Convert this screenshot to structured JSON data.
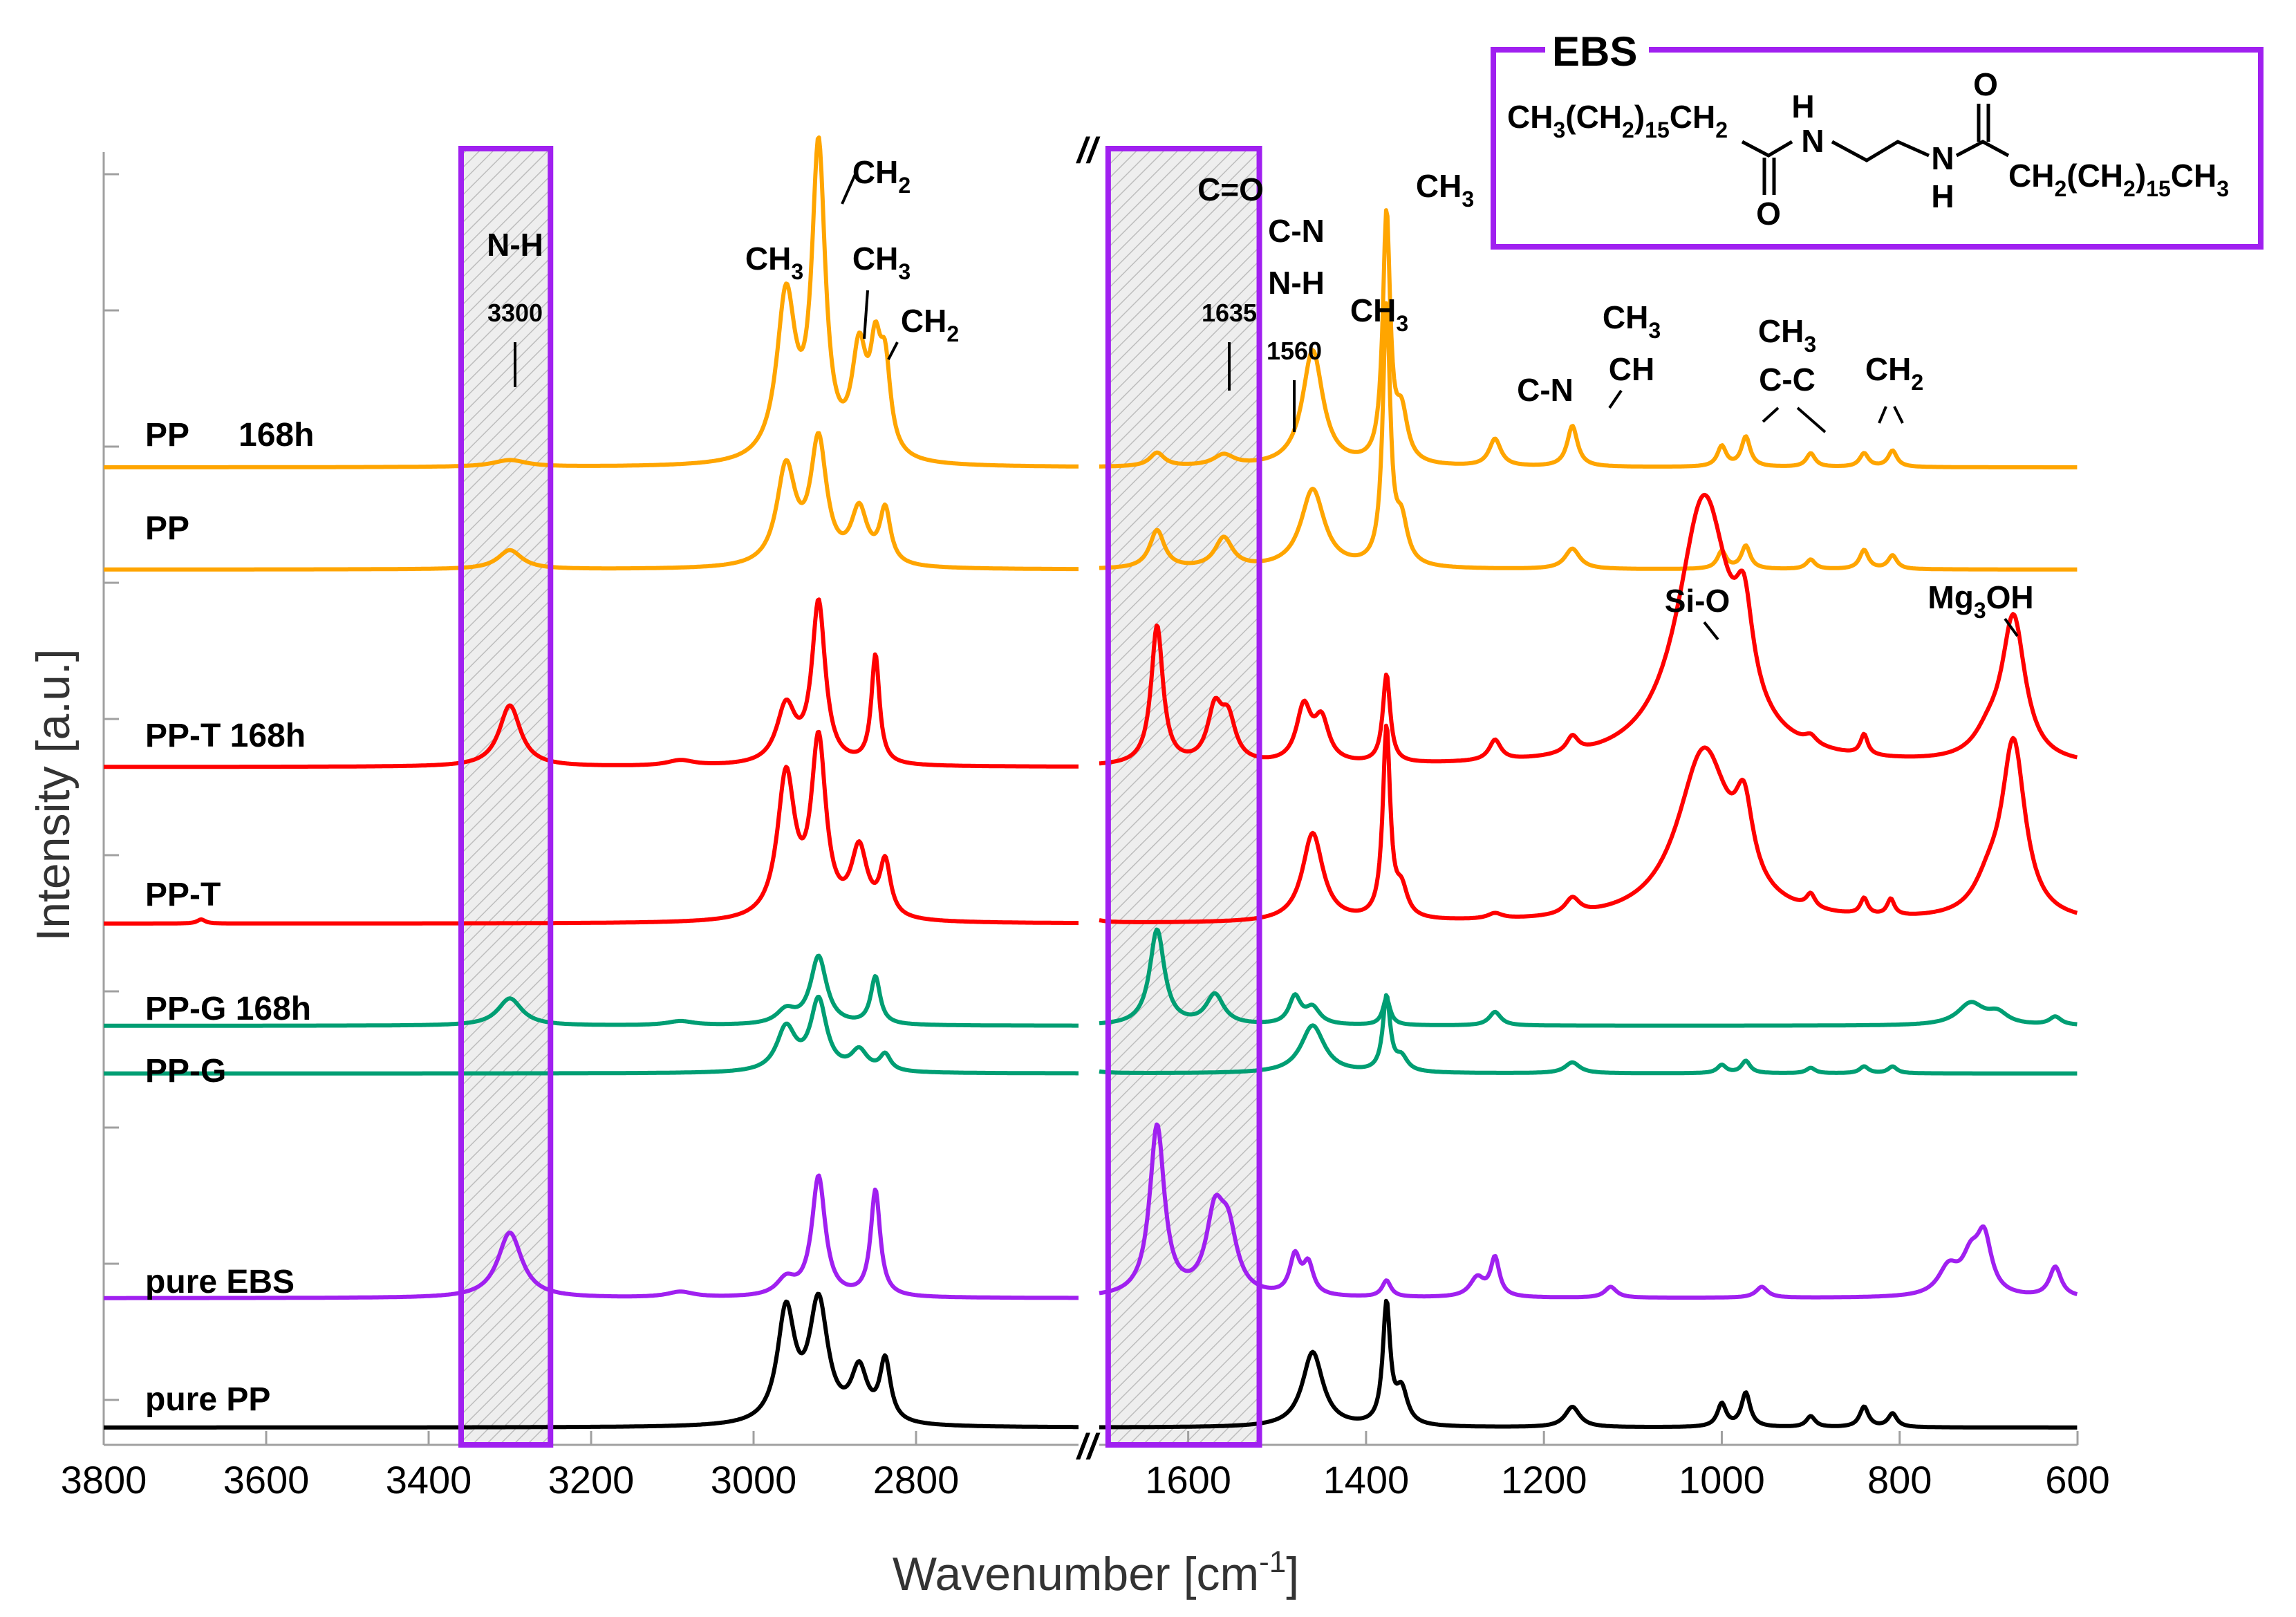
{
  "chart_data": {
    "type": "line",
    "title": "",
    "xlabel": "Wavenumber [cm-1]",
    "xlabel_base": "Wavenumber [cm",
    "xlabel_sup": "-1",
    "xlabel_end": "]",
    "ylabel": "Intensity [a.u.]",
    "x_axis_break": "//",
    "x_segments": [
      [
        3800,
        2600
      ],
      [
        1700,
        600
      ]
    ],
    "x_ticks": [
      3800,
      3600,
      3400,
      3200,
      3000,
      2800,
      1600,
      1400,
      1200,
      1000,
      800,
      600
    ],
    "x_tick_labels": [
      "3800",
      "3600",
      "3400",
      "3200",
      "3000",
      "2800",
      "1600",
      "1400",
      "1200",
      "1000",
      "800",
      "600"
    ],
    "y_ticks_unlabeled": [
      0,
      1,
      2,
      3,
      4,
      5,
      6,
      7,
      8,
      9
    ],
    "ylim": [
      0,
      9.3
    ],
    "colors": {
      "pp": "#FFA500",
      "ppt": "#FF0000",
      "ppg": "#009E73",
      "ebs": "#A020F0",
      "purepp": "#000000",
      "box": "#A020F0"
    },
    "highlight_regions": [
      {
        "x": [
          3360,
          3250
        ],
        "label": "N-H"
      },
      {
        "x": [
          1690,
          1520
        ],
        "label": "C=O"
      }
    ],
    "series": [
      {
        "name": "PP 168h",
        "label_a": "PP",
        "label_b": "168h",
        "color": "#FFA500",
        "baseline": 7.05,
        "peaks": [
          [
            3300,
            0.05,
            25
          ],
          [
            2960,
            1.2,
            14
          ],
          [
            2920,
            2.25,
            10
          ],
          [
            2870,
            0.75,
            11
          ],
          [
            2850,
            0.65,
            8
          ],
          [
            2838,
            0.6,
            8
          ],
          [
            1635,
            0.1,
            10
          ],
          [
            1560,
            0.08,
            14
          ],
          [
            1460,
            0.85,
            14
          ],
          [
            1377,
            1.82,
            5
          ],
          [
            1360,
            0.35,
            8
          ],
          [
            1255,
            0.2,
            8
          ],
          [
            1168,
            0.3,
            7
          ],
          [
            1000,
            0.15,
            6
          ],
          [
            973,
            0.22,
            6
          ],
          [
            900,
            0.1,
            6
          ],
          [
            840,
            0.1,
            6
          ],
          [
            808,
            0.12,
            6
          ]
        ]
      },
      {
        "name": "PP",
        "label_a": "PP",
        "color": "#FFA500",
        "baseline": 6.3,
        "peaks": [
          [
            3300,
            0.14,
            18
          ],
          [
            2960,
            0.72,
            14
          ],
          [
            2920,
            0.9,
            12
          ],
          [
            2870,
            0.4,
            12
          ],
          [
            2838,
            0.4,
            8
          ],
          [
            1635,
            0.28,
            10
          ],
          [
            1560,
            0.22,
            12
          ],
          [
            1460,
            0.58,
            16
          ],
          [
            1377,
            1.9,
            5
          ],
          [
            1360,
            0.3,
            8
          ],
          [
            1168,
            0.15,
            10
          ],
          [
            1000,
            0.13,
            6
          ],
          [
            973,
            0.17,
            6
          ],
          [
            900,
            0.07,
            6
          ],
          [
            840,
            0.14,
            6
          ],
          [
            808,
            0.1,
            6
          ]
        ]
      },
      {
        "name": "PP-T 168h",
        "label_a": "PP-T 168h",
        "color": "#FF0000",
        "baseline": 4.85,
        "peaks": [
          [
            3300,
            0.45,
            16
          ],
          [
            3090,
            0.04,
            20
          ],
          [
            2960,
            0.42,
            14
          ],
          [
            2920,
            1.18,
            10
          ],
          [
            2850,
            0.8,
            6
          ],
          [
            1635,
            1.02,
            8
          ],
          [
            1570,
            0.38,
            10
          ],
          [
            1555,
            0.3,
            10
          ],
          [
            1470,
            0.4,
            10
          ],
          [
            1450,
            0.3,
            10
          ],
          [
            1377,
            0.65,
            5
          ],
          [
            1255,
            0.15,
            8
          ],
          [
            1168,
            0.12,
            8
          ],
          [
            1020,
            1.95,
            36
          ],
          [
            975,
            0.65,
            12
          ],
          [
            900,
            0.06,
            8
          ],
          [
            840,
            0.15,
            5
          ],
          [
            672,
            1.05,
            16
          ],
          [
            700,
            0.15,
            20
          ]
        ]
      },
      {
        "name": "PP-T",
        "label_a": "PP-T",
        "color": "#FF0000",
        "baseline": 3.7,
        "peaks": [
          [
            3680,
            0.03,
            6
          ],
          [
            2960,
            1.05,
            13
          ],
          [
            2920,
            1.28,
            11
          ],
          [
            2870,
            0.5,
            12
          ],
          [
            2838,
            0.4,
            8
          ],
          [
            1720,
            0.07,
            12
          ],
          [
            1460,
            0.65,
            14
          ],
          [
            1377,
            1.4,
            5
          ],
          [
            1360,
            0.2,
            8
          ],
          [
            1255,
            0.04,
            10
          ],
          [
            1168,
            0.12,
            10
          ],
          [
            1020,
            1.25,
            36
          ],
          [
            975,
            0.55,
            12
          ],
          [
            900,
            0.1,
            6
          ],
          [
            840,
            0.12,
            5
          ],
          [
            810,
            0.12,
            5
          ],
          [
            672,
            1.28,
            16
          ],
          [
            700,
            0.2,
            20
          ]
        ]
      },
      {
        "name": "PP-G 168h",
        "label_a": "PP-G 168h",
        "color": "#009E73",
        "baseline": 2.95,
        "peaks": [
          [
            3300,
            0.2,
            18
          ],
          [
            3090,
            0.03,
            20
          ],
          [
            2960,
            0.1,
            14
          ],
          [
            2920,
            0.5,
            12
          ],
          [
            2850,
            0.35,
            7
          ],
          [
            1635,
            0.7,
            10
          ],
          [
            1570,
            0.22,
            12
          ],
          [
            1480,
            0.2,
            8
          ],
          [
            1460,
            0.12,
            10
          ],
          [
            1377,
            0.2,
            5
          ],
          [
            1255,
            0.1,
            8
          ],
          [
            720,
            0.16,
            18
          ],
          [
            690,
            0.08,
            14
          ],
          [
            625,
            0.06,
            8
          ]
        ]
      },
      {
        "name": "PP-G",
        "label_a": "PP-G",
        "color": "#009E73",
        "baseline": 2.6,
        "peaks": [
          [
            2960,
            0.32,
            14
          ],
          [
            2920,
            0.52,
            12
          ],
          [
            2870,
            0.15,
            12
          ],
          [
            2838,
            0.12,
            8
          ],
          [
            1720,
            0.05,
            12
          ],
          [
            1460,
            0.35,
            16
          ],
          [
            1377,
            0.55,
            5
          ],
          [
            1360,
            0.1,
            8
          ],
          [
            1168,
            0.08,
            10
          ],
          [
            1000,
            0.06,
            6
          ],
          [
            973,
            0.09,
            6
          ],
          [
            900,
            0.04,
            6
          ],
          [
            840,
            0.05,
            6
          ],
          [
            808,
            0.05,
            6
          ]
        ]
      },
      {
        "name": "pure EBS",
        "label_a": "pure EBS",
        "color": "#A020F0",
        "baseline": 0.95,
        "peaks": [
          [
            3300,
            0.48,
            18
          ],
          [
            3090,
            0.04,
            20
          ],
          [
            2960,
            0.12,
            14
          ],
          [
            2920,
            0.88,
            10
          ],
          [
            2850,
            0.78,
            7
          ],
          [
            1635,
            1.25,
            10
          ],
          [
            1570,
            0.55,
            12
          ],
          [
            1555,
            0.42,
            12
          ],
          [
            1480,
            0.28,
            7
          ],
          [
            1465,
            0.22,
            7
          ],
          [
            1377,
            0.12,
            6
          ],
          [
            1275,
            0.14,
            10
          ],
          [
            1255,
            0.28,
            6
          ],
          [
            1125,
            0.08,
            8
          ],
          [
            955,
            0.08,
            8
          ],
          [
            745,
            0.2,
            14
          ],
          [
            720,
            0.25,
            12
          ],
          [
            705,
            0.4,
            10
          ],
          [
            625,
            0.22,
            8
          ]
        ]
      },
      {
        "name": "pure PP",
        "label_a": "pure PP",
        "color": "#000000",
        "baseline": 0.0,
        "peaks": [
          [
            2960,
            0.82,
            13
          ],
          [
            2920,
            0.88,
            14
          ],
          [
            2870,
            0.38,
            12
          ],
          [
            2838,
            0.45,
            8
          ],
          [
            1460,
            0.55,
            14
          ],
          [
            1377,
            0.88,
            5
          ],
          [
            1360,
            0.25,
            8
          ],
          [
            1168,
            0.15,
            10
          ],
          [
            1000,
            0.17,
            6
          ],
          [
            973,
            0.25,
            6
          ],
          [
            900,
            0.08,
            6
          ],
          [
            840,
            0.15,
            6
          ],
          [
            808,
            0.1,
            6
          ]
        ]
      }
    ],
    "annotations": {
      "nh": "N-H",
      "nh_pos": "3300",
      "ch3_a": "CH",
      "ch2_a": "CH",
      "ch3_b": "CH",
      "ch2_b": "CH",
      "co": "C=O",
      "cn1": "C-N",
      "nh2": "N-H",
      "pos1635": "1635",
      "pos1560": "1560",
      "ch3_c": "CH",
      "ch3_d": "CH",
      "cn2": "C-N",
      "ch3_e": "CH",
      "ch": "CH",
      "ch3_f": "CH",
      "cc": "C-C",
      "ch2_c": "CH",
      "sio": "Si-O",
      "mg": "Mg",
      "oh": "OH",
      "sub2": "2",
      "sub3": "3"
    },
    "ebs_box": {
      "title": "EBS",
      "left_chain_a": "CH",
      "left_chain_b": "(CH",
      "left_chain_c": ")",
      "left_chain_d": "CH",
      "right_chain_a": "CH",
      "right_chain_b": "(CH",
      "right_chain_c": ")",
      "right_chain_d": "CH",
      "sub15": "15",
      "sub2": "2",
      "sub3": "3",
      "atom_h": "H",
      "atom_n": "N",
      "atom_o": "O"
    }
  }
}
